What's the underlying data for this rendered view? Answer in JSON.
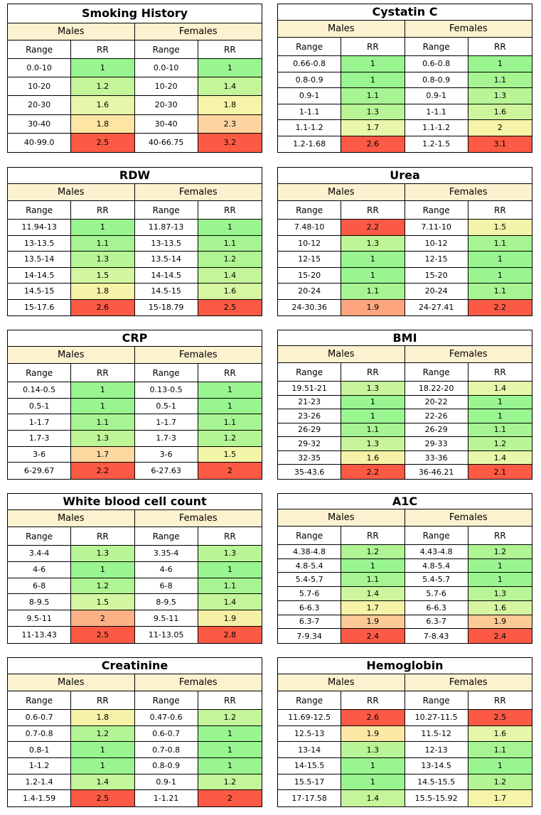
{
  "panels": [
    {
      "title": "Smoking History",
      "males_label": "Males",
      "females_label": "Females",
      "range_header": "Range",
      "rr_header": "RR",
      "rows": [
        {
          "m_range": "0.0-10",
          "m_rr": "1",
          "m_color": "#99f590",
          "f_range": "0.0-10",
          "f_rr": "1",
          "f_color": "#99f590"
        },
        {
          "m_range": "10-20",
          "m_rr": "1.2",
          "m_color": "#c4f59a",
          "f_range": "10-20",
          "f_rr": "1.4",
          "f_color": "#c4f59a"
        },
        {
          "m_range": "20-30",
          "m_rr": "1.6",
          "m_color": "#e6f7a9",
          "f_range": "20-30",
          "f_rr": "1.8",
          "f_color": "#f5f4a8"
        },
        {
          "m_range": "30-40",
          "m_rr": "1.8",
          "m_color": "#fde6a4",
          "f_range": "30-40",
          "f_rr": "2.3",
          "f_color": "#fdd4a0"
        },
        {
          "m_range": "40-99.0",
          "m_rr": "2.5",
          "m_color": "#fc5a44",
          "f_range": "40-66.75",
          "f_rr": "3.2",
          "f_color": "#fc5a44"
        }
      ]
    },
    {
      "title": "Cystatin C",
      "males_label": "Males",
      "females_label": "Females",
      "range_header": "Range",
      "rr_header": "RR",
      "rows": [
        {
          "m_range": "0.66-0.8",
          "m_rr": "1",
          "m_color": "#99f590",
          "f_range": "0.6-0.8",
          "f_rr": "1",
          "f_color": "#99f590"
        },
        {
          "m_range": "0.8-0.9",
          "m_rr": "1",
          "m_color": "#99f590",
          "f_range": "0.8-0.9",
          "f_rr": "1.1",
          "f_color": "#a6f592"
        },
        {
          "m_range": "0.9-1",
          "m_rr": "1.1",
          "m_color": "#a6f592",
          "f_range": "0.9-1",
          "f_rr": "1.3",
          "f_color": "#b8f596"
        },
        {
          "m_range": "1-1.1",
          "m_rr": "1.3",
          "m_color": "#b8f596",
          "f_range": "1-1.1",
          "f_rr": "1.6",
          "f_color": "#cdf59e"
        },
        {
          "m_range": "1.1-1.2",
          "m_rr": "1.7",
          "m_color": "#e8f7a9",
          "f_range": "1.1-1.2",
          "f_rr": "2",
          "f_color": "#f5f4a8"
        },
        {
          "m_range": "1.2-1.68",
          "m_rr": "2.6",
          "m_color": "#fc5a44",
          "f_range": "1.2-1.5",
          "f_rr": "3.1",
          "f_color": "#fc5a44"
        }
      ]
    },
    {
      "title": "RDW",
      "males_label": "Males",
      "females_label": "Females",
      "range_header": "Range",
      "rr_header": "RR",
      "rows": [
        {
          "m_range": "11.94-13",
          "m_rr": "1",
          "m_color": "#99f590",
          "f_range": "11.87-13",
          "f_rr": "1",
          "f_color": "#99f590"
        },
        {
          "m_range": "13-13.5",
          "m_rr": "1.1",
          "m_color": "#a6f592",
          "f_range": "13-13.5",
          "f_rr": "1.1",
          "f_color": "#a6f592"
        },
        {
          "m_range": "13.5-14",
          "m_rr": "1.3",
          "m_color": "#b8f596",
          "f_range": "13.5-14",
          "f_rr": "1.2",
          "f_color": "#aff594"
        },
        {
          "m_range": "14-14.5",
          "m_rr": "1.5",
          "m_color": "#d3f6a0",
          "f_range": "14-14.5",
          "f_rr": "1.4",
          "f_color": "#c4f59a"
        },
        {
          "m_range": "14.5-15",
          "m_rr": "1.8",
          "m_color": "#f6f3a8",
          "f_range": "14.5-15",
          "f_rr": "1.6",
          "f_color": "#d6f6a1"
        },
        {
          "m_range": "15-17.6",
          "m_rr": "2.6",
          "m_color": "#fc5a44",
          "f_range": "15-18.79",
          "f_rr": "2.5",
          "f_color": "#fc5a44"
        }
      ]
    },
    {
      "title": "Urea",
      "males_label": "Males",
      "females_label": "Females",
      "range_header": "Range",
      "rr_header": "RR",
      "rows": [
        {
          "m_range": "7.48-10",
          "m_rr": "2.2",
          "m_color": "#fc5a44",
          "f_range": "7.11-10",
          "f_rr": "1.5",
          "f_color": "#f3f4a8"
        },
        {
          "m_range": "10-12",
          "m_rr": "1.3",
          "m_color": "#bdf597",
          "f_range": "10-12",
          "f_rr": "1.1",
          "f_color": "#a6f592"
        },
        {
          "m_range": "12-15",
          "m_rr": "1",
          "m_color": "#99f590",
          "f_range": "12-15",
          "f_rr": "1",
          "f_color": "#99f590"
        },
        {
          "m_range": "15-20",
          "m_rr": "1",
          "m_color": "#99f590",
          "f_range": "15-20",
          "f_rr": "1",
          "f_color": "#99f590"
        },
        {
          "m_range": "20-24",
          "m_rr": "1.1",
          "m_color": "#a6f592",
          "f_range": "20-24",
          "f_rr": "1.1",
          "f_color": "#a6f592"
        },
        {
          "m_range": "24-30.36",
          "m_rr": "1.9",
          "m_color": "#fca57e",
          "f_range": "24-27.41",
          "f_rr": "2.2",
          "f_color": "#fc5a44"
        }
      ]
    },
    {
      "title": "CRP",
      "males_label": "Males",
      "females_label": "Females",
      "range_header": "Range",
      "rr_header": "RR",
      "rows": [
        {
          "m_range": "0.14-0.5",
          "m_rr": "1",
          "m_color": "#99f590",
          "f_range": "0.13-0.5",
          "f_rr": "1",
          "f_color": "#99f590"
        },
        {
          "m_range": "0.5-1",
          "m_rr": "1",
          "m_color": "#99f590",
          "f_range": "0.5-1",
          "f_rr": "1",
          "f_color": "#99f590"
        },
        {
          "m_range": "1-1.7",
          "m_rr": "1.1",
          "m_color": "#a6f592",
          "f_range": "1-1.7",
          "f_rr": "1.1",
          "f_color": "#a6f592"
        },
        {
          "m_range": "1.7-3",
          "m_rr": "1.3",
          "m_color": "#bdf597",
          "f_range": "1.7-3",
          "f_rr": "1.2",
          "f_color": "#b3f595"
        },
        {
          "m_range": "3-6",
          "m_rr": "1.7",
          "m_color": "#fdd9a2",
          "f_range": "3-6",
          "f_rr": "1.5",
          "f_color": "#f2f4a8"
        },
        {
          "m_range": "6-29.67",
          "m_rr": "2.2",
          "m_color": "#fc5a44",
          "f_range": "6-27.63",
          "f_rr": "2",
          "f_color": "#fc5a44"
        }
      ]
    },
    {
      "title": "BMI",
      "males_label": "Males",
      "females_label": "Females",
      "range_header": "Range",
      "rr_header": "RR",
      "rows": [
        {
          "m_range": "19.51-21",
          "m_rr": "1.3",
          "m_color": "#c8f59b",
          "f_range": "18.22-20",
          "f_rr": "1.4",
          "f_color": "#e6f7a9"
        },
        {
          "m_range": "21-23",
          "m_rr": "1",
          "m_color": "#99f590",
          "f_range": "20-22",
          "f_rr": "1",
          "f_color": "#99f590"
        },
        {
          "m_range": "23-26",
          "m_rr": "1",
          "m_color": "#99f590",
          "f_range": "22-26",
          "f_rr": "1",
          "f_color": "#99f590"
        },
        {
          "m_range": "26-29",
          "m_rr": "1.1",
          "m_color": "#a6f592",
          "f_range": "26-29",
          "f_rr": "1.1",
          "f_color": "#a6f592"
        },
        {
          "m_range": "29-32",
          "m_rr": "1.3",
          "m_color": "#c8f59b",
          "f_range": "29-33",
          "f_rr": "1.2",
          "f_color": "#b8f596"
        },
        {
          "m_range": "32-35",
          "m_rr": "1.6",
          "m_color": "#f6f1a7",
          "f_range": "33-36",
          "f_rr": "1.4",
          "f_color": "#e6f7a9"
        },
        {
          "m_range": "35-43.6",
          "m_rr": "2.2",
          "m_color": "#fc5a44",
          "f_range": "36-46.21",
          "f_rr": "2.1",
          "f_color": "#fc5a44"
        }
      ]
    },
    {
      "title": "White blood cell count",
      "males_label": "Males",
      "females_label": "Females",
      "range_header": "Range",
      "rr_header": "RR",
      "rows": [
        {
          "m_range": "3.4-4",
          "m_rr": "1.3",
          "m_color": "#b8f596",
          "f_range": "3.35-4",
          "f_rr": "1.3",
          "f_color": "#b8f596"
        },
        {
          "m_range": "4-6",
          "m_rr": "1",
          "m_color": "#99f590",
          "f_range": "4-6",
          "f_rr": "1",
          "f_color": "#99f590"
        },
        {
          "m_range": "6-8",
          "m_rr": "1.2",
          "m_color": "#aff594",
          "f_range": "6-8",
          "f_rr": "1.1",
          "f_color": "#a6f592"
        },
        {
          "m_range": "8-9.5",
          "m_rr": "1.5",
          "m_color": "#d3f6a0",
          "f_range": "8-9.5",
          "f_rr": "1.4",
          "f_color": "#c4f59a"
        },
        {
          "m_range": "9.5-11",
          "m_rr": "2",
          "m_color": "#fcb186",
          "f_range": "9.5-11",
          "f_rr": "1.9",
          "f_color": "#f6f0a6"
        },
        {
          "m_range": "11-13.43",
          "m_rr": "2.5",
          "m_color": "#fc5a44",
          "f_range": "11-13.05",
          "f_rr": "2.8",
          "f_color": "#fc5a44"
        }
      ]
    },
    {
      "title": "A1C",
      "males_label": "Males",
      "females_label": "Females",
      "range_header": "Range",
      "rr_header": "RR",
      "rows": [
        {
          "m_range": "4.38-4.8",
          "m_rr": "1.2",
          "m_color": "#aff594",
          "f_range": "4.43-4.8",
          "f_rr": "1.2",
          "f_color": "#aff594"
        },
        {
          "m_range": "4.8-5.4",
          "m_rr": "1",
          "m_color": "#99f590",
          "f_range": "4.8-5.4",
          "f_rr": "1",
          "f_color": "#99f590"
        },
        {
          "m_range": "5.4-5.7",
          "m_rr": "1.1",
          "m_color": "#a6f592",
          "f_range": "5.4-5.7",
          "f_rr": "1",
          "f_color": "#99f590"
        },
        {
          "m_range": "5.7-6",
          "m_rr": "1.4",
          "m_color": "#ccf59e",
          "f_range": "5.7-6",
          "f_rr": "1.3",
          "f_color": "#b8f596"
        },
        {
          "m_range": "6-6.3",
          "m_rr": "1.7",
          "m_color": "#f6f2a7",
          "f_range": "6-6.3",
          "f_rr": "1.6",
          "f_color": "#d6f6a1"
        },
        {
          "m_range": "6.3-7",
          "m_rr": "1.9",
          "m_color": "#fdc996",
          "f_range": "6.3-7",
          "f_rr": "1.9",
          "f_color": "#fdc996"
        },
        {
          "m_range": "7-9.34",
          "m_rr": "2.4",
          "m_color": "#fc5a44",
          "f_range": "7-8.43",
          "f_rr": "2.4",
          "f_color": "#fc5a44"
        }
      ]
    },
    {
      "title": "Creatinine",
      "males_label": "Males",
      "females_label": "Females",
      "range_header": "Range",
      "rr_header": "RR",
      "rows": [
        {
          "m_range": "0.6-0.7",
          "m_rr": "1.8",
          "m_color": "#f6f3a8",
          "f_range": "0.47-0.6",
          "f_rr": "1.2",
          "f_color": "#c4f59a"
        },
        {
          "m_range": "0.7-0.8",
          "m_rr": "1.2",
          "m_color": "#b3f595",
          "f_range": "0.6-0.7",
          "f_rr": "1",
          "f_color": "#99f590"
        },
        {
          "m_range": "0.8-1",
          "m_rr": "1",
          "m_color": "#99f590",
          "f_range": "0.7-0.8",
          "f_rr": "1",
          "f_color": "#99f590"
        },
        {
          "m_range": "1-1.2",
          "m_rr": "1",
          "m_color": "#99f590",
          "f_range": "0.8-0.9",
          "f_rr": "1",
          "f_color": "#99f590"
        },
        {
          "m_range": "1.2-1.4",
          "m_rr": "1.4",
          "m_color": "#c4f59a",
          "f_range": "0.9-1",
          "f_rr": "1.2",
          "f_color": "#c4f59a"
        },
        {
          "m_range": "1.4-1.59",
          "m_rr": "2.5",
          "m_color": "#fc5a44",
          "f_range": "1-1.21",
          "f_rr": "2",
          "f_color": "#fc5a44"
        }
      ]
    },
    {
      "title": "Hemoglobin",
      "males_label": "Males",
      "females_label": "Females",
      "range_header": "Range",
      "rr_header": "RR",
      "rows": [
        {
          "m_range": "11.69-12.5",
          "m_rr": "2.6",
          "m_color": "#fc5a44",
          "f_range": "10.27-11.5",
          "f_rr": "2.5",
          "f_color": "#fc5a44"
        },
        {
          "m_range": "12.5-13",
          "m_rr": "1.9",
          "m_color": "#fde7a5",
          "f_range": "11.5-12",
          "f_rr": "1.6",
          "f_color": "#e6f7a9"
        },
        {
          "m_range": "13-14",
          "m_rr": "1.3",
          "m_color": "#b8f596",
          "f_range": "12-13",
          "f_rr": "1.1",
          "f_color": "#a6f592"
        },
        {
          "m_range": "14-15.5",
          "m_rr": "1",
          "m_color": "#99f590",
          "f_range": "13-14.5",
          "f_rr": "1",
          "f_color": "#99f590"
        },
        {
          "m_range": "15.5-17",
          "m_rr": "1",
          "m_color": "#99f590",
          "f_range": "14.5-15.5",
          "f_rr": "1.2",
          "f_color": "#b3f595"
        },
        {
          "m_range": "17-17.58",
          "m_rr": "1.4",
          "m_color": "#c4f59a",
          "f_range": "15.5-15.92",
          "f_rr": "1.7",
          "f_color": "#f5f4a8"
        }
      ]
    }
  ]
}
